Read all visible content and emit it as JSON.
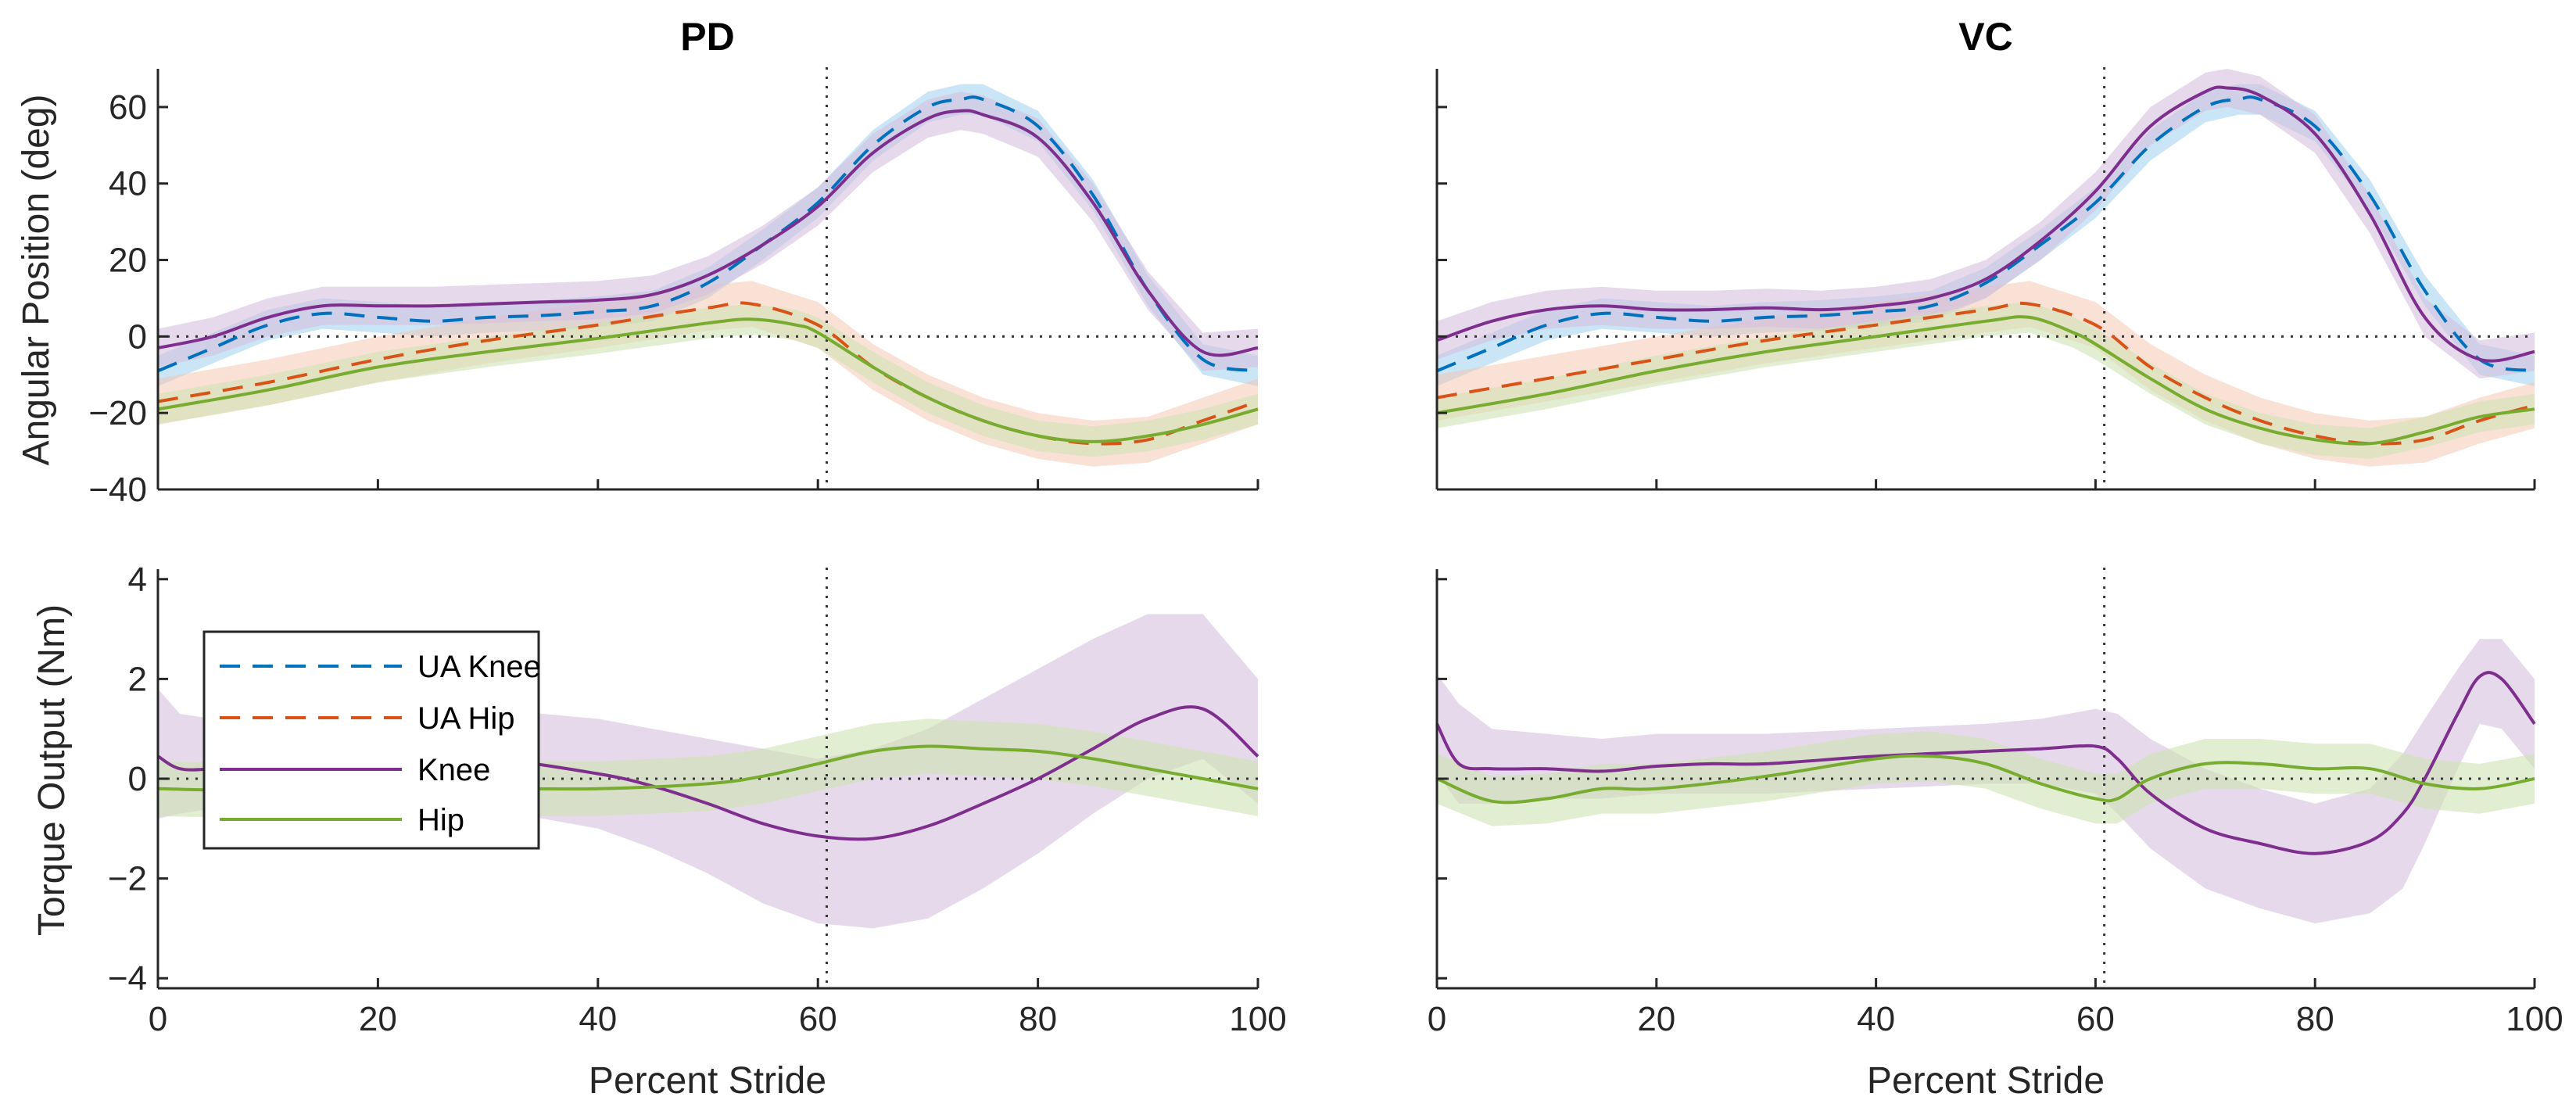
{
  "figure": {
    "panel_titles": [
      "PD",
      "VC"
    ]
  },
  "legend": {
    "location": "inside bottom-left panel, upper-left",
    "entries": [
      {
        "label": "UA Knee",
        "color": "#0072BD",
        "style": "dashed"
      },
      {
        "label": "UA Hip",
        "color": "#D95319",
        "style": "dashed"
      },
      {
        "label": "Knee",
        "color": "#7E2F8E",
        "style": "solid"
      },
      {
        "label": "Hip",
        "color": "#77AC30",
        "style": "solid"
      }
    ]
  },
  "colors": {
    "ua_knee": "#0072BD",
    "ua_knee_band": "#9ccfee",
    "ua_hip": "#D95319",
    "ua_hip_band": "#f5c3ad",
    "knee": "#7E2F8E",
    "knee_band": "#d7bfe0",
    "hip": "#77AC30",
    "hip_band": "#cfe3b3",
    "axis": "#262626",
    "reference": "#333333"
  },
  "chart_data": [
    {
      "id": "pd-angle",
      "type": "line",
      "title": "PD",
      "xlabel": "",
      "ylabel": "Angular Position (deg)",
      "xlim": [
        0,
        100
      ],
      "ylim": [
        -40,
        70
      ],
      "yticks": [
        -40,
        -20,
        0,
        20,
        40,
        60
      ],
      "xticks": [
        0,
        20,
        40,
        60,
        80,
        100
      ],
      "show_xtick_labels": false,
      "vline_x": 60.8,
      "hline_y": 0,
      "series": [
        {
          "name": "UA Knee",
          "x": [
            0,
            5,
            10,
            15,
            20,
            25,
            30,
            35,
            40,
            45,
            50,
            55,
            60,
            65,
            70,
            73,
            75,
            80,
            85,
            90,
            95,
            100
          ],
          "y": [
            -9,
            -3,
            3,
            6,
            5,
            4,
            5,
            5.5,
            6.5,
            8,
            14,
            24,
            35,
            50,
            60,
            62,
            62,
            55,
            37,
            12,
            -6,
            -9
          ],
          "band": 4
        },
        {
          "name": "UA Hip",
          "x": [
            0,
            10,
            20,
            30,
            40,
            50,
            54,
            60,
            65,
            70,
            75,
            80,
            85,
            90,
            95,
            100
          ],
          "y": [
            -17,
            -12,
            -6,
            -1,
            3,
            7.5,
            8.5,
            3,
            -8,
            -16,
            -22,
            -26,
            -28,
            -27,
            -22,
            -17
          ],
          "band": 6
        },
        {
          "name": "Knee",
          "x": [
            0,
            5,
            10,
            15,
            20,
            25,
            30,
            35,
            40,
            45,
            50,
            55,
            60,
            65,
            70,
            73,
            75,
            80,
            85,
            90,
            95,
            100
          ],
          "y": [
            -3,
            0,
            5,
            8,
            8,
            8,
            8.5,
            9,
            9.5,
            11,
            16,
            24,
            34,
            48,
            57,
            59,
            58,
            52,
            35,
            12,
            -4,
            -3
          ],
          "band": 5
        },
        {
          "name": "Hip",
          "x": [
            0,
            10,
            20,
            30,
            40,
            50,
            54,
            58,
            60,
            65,
            70,
            75,
            80,
            85,
            90,
            95,
            100
          ],
          "y": [
            -19,
            -14,
            -8,
            -4,
            -0.5,
            3.5,
            4.5,
            3,
            1,
            -8,
            -16,
            -22,
            -26,
            -27.5,
            -26,
            -23,
            -19
          ],
          "band": 4
        }
      ]
    },
    {
      "id": "vc-angle",
      "type": "line",
      "title": "VC",
      "xlabel": "",
      "ylabel": "",
      "xlim": [
        0,
        100
      ],
      "ylim": [
        -40,
        70
      ],
      "yticks": [
        -40,
        -20,
        0,
        20,
        40,
        60
      ],
      "xticks": [
        0,
        20,
        40,
        60,
        80,
        100
      ],
      "show_xtick_labels": false,
      "show_ytick_labels": false,
      "vline_x": 60.8,
      "hline_y": 0,
      "series": [
        {
          "name": "UA Knee",
          "x": [
            0,
            5,
            10,
            15,
            20,
            25,
            30,
            35,
            40,
            45,
            50,
            55,
            60,
            65,
            70,
            73,
            75,
            80,
            85,
            90,
            95,
            100
          ],
          "y": [
            -9,
            -3,
            3,
            6,
            5,
            4,
            5,
            5.5,
            6.5,
            8,
            14,
            24,
            35,
            50,
            60,
            62,
            62,
            55,
            37,
            12,
            -6,
            -9
          ],
          "band": 4
        },
        {
          "name": "UA Hip",
          "x": [
            0,
            10,
            20,
            30,
            40,
            50,
            54,
            60,
            65,
            70,
            75,
            80,
            85,
            90,
            95,
            100
          ],
          "y": [
            -16,
            -11,
            -6,
            -1,
            3,
            7,
            8.5,
            3,
            -8,
            -16,
            -22,
            -26,
            -28,
            -27,
            -22,
            -18
          ],
          "band": 6
        },
        {
          "name": "Knee",
          "x": [
            0,
            5,
            10,
            15,
            20,
            25,
            30,
            35,
            40,
            45,
            50,
            55,
            60,
            65,
            70,
            72,
            75,
            80,
            85,
            90,
            95,
            100
          ],
          "y": [
            -1,
            4,
            7,
            8,
            7,
            7,
            7.5,
            7,
            8,
            10,
            15,
            25,
            38,
            55,
            64,
            65,
            63,
            53,
            32,
            5,
            -6,
            -4
          ],
          "band": 5
        },
        {
          "name": "Hip",
          "x": [
            0,
            10,
            20,
            30,
            40,
            50,
            54,
            58,
            60,
            65,
            70,
            75,
            80,
            85,
            90,
            95,
            100
          ],
          "y": [
            -20,
            -15,
            -9,
            -4,
            0,
            4,
            5,
            1,
            -2,
            -11,
            -19,
            -24,
            -27,
            -28,
            -25,
            -21,
            -19
          ],
          "band": 4
        }
      ]
    },
    {
      "id": "pd-torque",
      "type": "line",
      "title": "",
      "xlabel": "Percent Stride",
      "ylabel": "Torque Output (Nm)",
      "xlim": [
        0,
        100
      ],
      "ylim": [
        -4.2,
        4.2
      ],
      "yticks": [
        -4,
        -2,
        0,
        2,
        4
      ],
      "xticks": [
        0,
        20,
        40,
        60,
        80,
        100
      ],
      "show_xtick_labels": true,
      "vline_x": 60.8,
      "hline_y": 0,
      "series": [
        {
          "name": "Knee",
          "x": [
            0,
            2,
            5,
            10,
            20,
            30,
            40,
            45,
            50,
            55,
            60,
            65,
            70,
            75,
            80,
            85,
            90,
            95,
            100
          ],
          "y": [
            0.45,
            0.2,
            0.2,
            0.3,
            0.4,
            0.4,
            0.1,
            -0.15,
            -0.5,
            -0.9,
            -1.15,
            -1.2,
            -0.95,
            -0.5,
            0,
            0.6,
            1.2,
            1.4,
            0.45
          ],
          "band_lower": [
            -0.8,
            -0.7,
            -0.6,
            -0.5,
            -0.5,
            -0.6,
            -1.0,
            -1.4,
            -1.9,
            -2.5,
            -2.9,
            -3.0,
            -2.8,
            -2.2,
            -1.5,
            -0.7,
            0.0,
            0.4,
            -0.5
          ],
          "band_upper": [
            1.8,
            1.3,
            1.2,
            1.2,
            1.3,
            1.4,
            1.2,
            1.0,
            0.8,
            0.6,
            0.4,
            0.6,
            1.0,
            1.6,
            2.2,
            2.8,
            3.3,
            3.3,
            2.0
          ]
        },
        {
          "name": "Hip",
          "x": [
            0,
            10,
            20,
            30,
            40,
            50,
            55,
            60,
            65,
            70,
            75,
            80,
            85,
            90,
            95,
            100
          ],
          "y": [
            -0.2,
            -0.25,
            -0.25,
            -0.2,
            -0.2,
            -0.1,
            0.05,
            0.3,
            0.55,
            0.65,
            0.6,
            0.55,
            0.4,
            0.2,
            0,
            -0.2
          ],
          "band": 0.55
        }
      ]
    },
    {
      "id": "vc-torque",
      "type": "line",
      "title": "",
      "xlabel": "Percent Stride",
      "ylabel": "",
      "xlim": [
        0,
        100
      ],
      "ylim": [
        -4.2,
        4.2
      ],
      "yticks": [
        -4,
        -2,
        0,
        2,
        4
      ],
      "xticks": [
        0,
        20,
        40,
        60,
        80,
        100
      ],
      "show_xtick_labels": true,
      "show_ytick_labels": false,
      "vline_x": 60.8,
      "hline_y": 0,
      "series": [
        {
          "name": "Knee",
          "x": [
            0,
            2,
            5,
            10,
            15,
            20,
            25,
            30,
            40,
            50,
            55,
            60,
            62,
            65,
            70,
            75,
            80,
            85,
            88,
            90,
            93,
            95,
            97,
            100
          ],
          "y": [
            1.1,
            0.3,
            0.2,
            0.2,
            0.15,
            0.25,
            0.3,
            0.3,
            0.45,
            0.55,
            0.6,
            0.65,
            0.4,
            -0.3,
            -1.0,
            -1.3,
            -1.5,
            -1.25,
            -0.7,
            0,
            1.3,
            2.05,
            2.0,
            1.1
          ],
          "band_lower": [
            0.1,
            -0.5,
            -0.5,
            -0.4,
            -0.4,
            -0.3,
            -0.3,
            -0.3,
            -0.2,
            -0.1,
            -0.1,
            -0.3,
            -0.7,
            -1.4,
            -2.2,
            -2.6,
            -2.9,
            -2.7,
            -2.2,
            -1.3,
            0.2,
            1.1,
            1.0,
            0.2
          ],
          "band_upper": [
            2.1,
            1.5,
            1.0,
            0.9,
            0.8,
            0.9,
            0.9,
            0.9,
            1.0,
            1.1,
            1.2,
            1.4,
            1.3,
            0.8,
            0.2,
            -0.2,
            -0.5,
            -0.2,
            0.5,
            1.2,
            2.2,
            2.8,
            2.8,
            2.0
          ]
        },
        {
          "name": "Hip",
          "x": [
            0,
            5,
            10,
            15,
            20,
            30,
            40,
            45,
            50,
            55,
            60,
            62,
            65,
            70,
            75,
            80,
            85,
            90,
            95,
            100
          ],
          "y": [
            0,
            -0.45,
            -0.4,
            -0.2,
            -0.2,
            0.05,
            0.4,
            0.45,
            0.3,
            -0.1,
            -0.4,
            -0.4,
            0,
            0.3,
            0.3,
            0.2,
            0.2,
            -0.1,
            -0.2,
            0
          ],
          "band": 0.5
        }
      ]
    }
  ]
}
